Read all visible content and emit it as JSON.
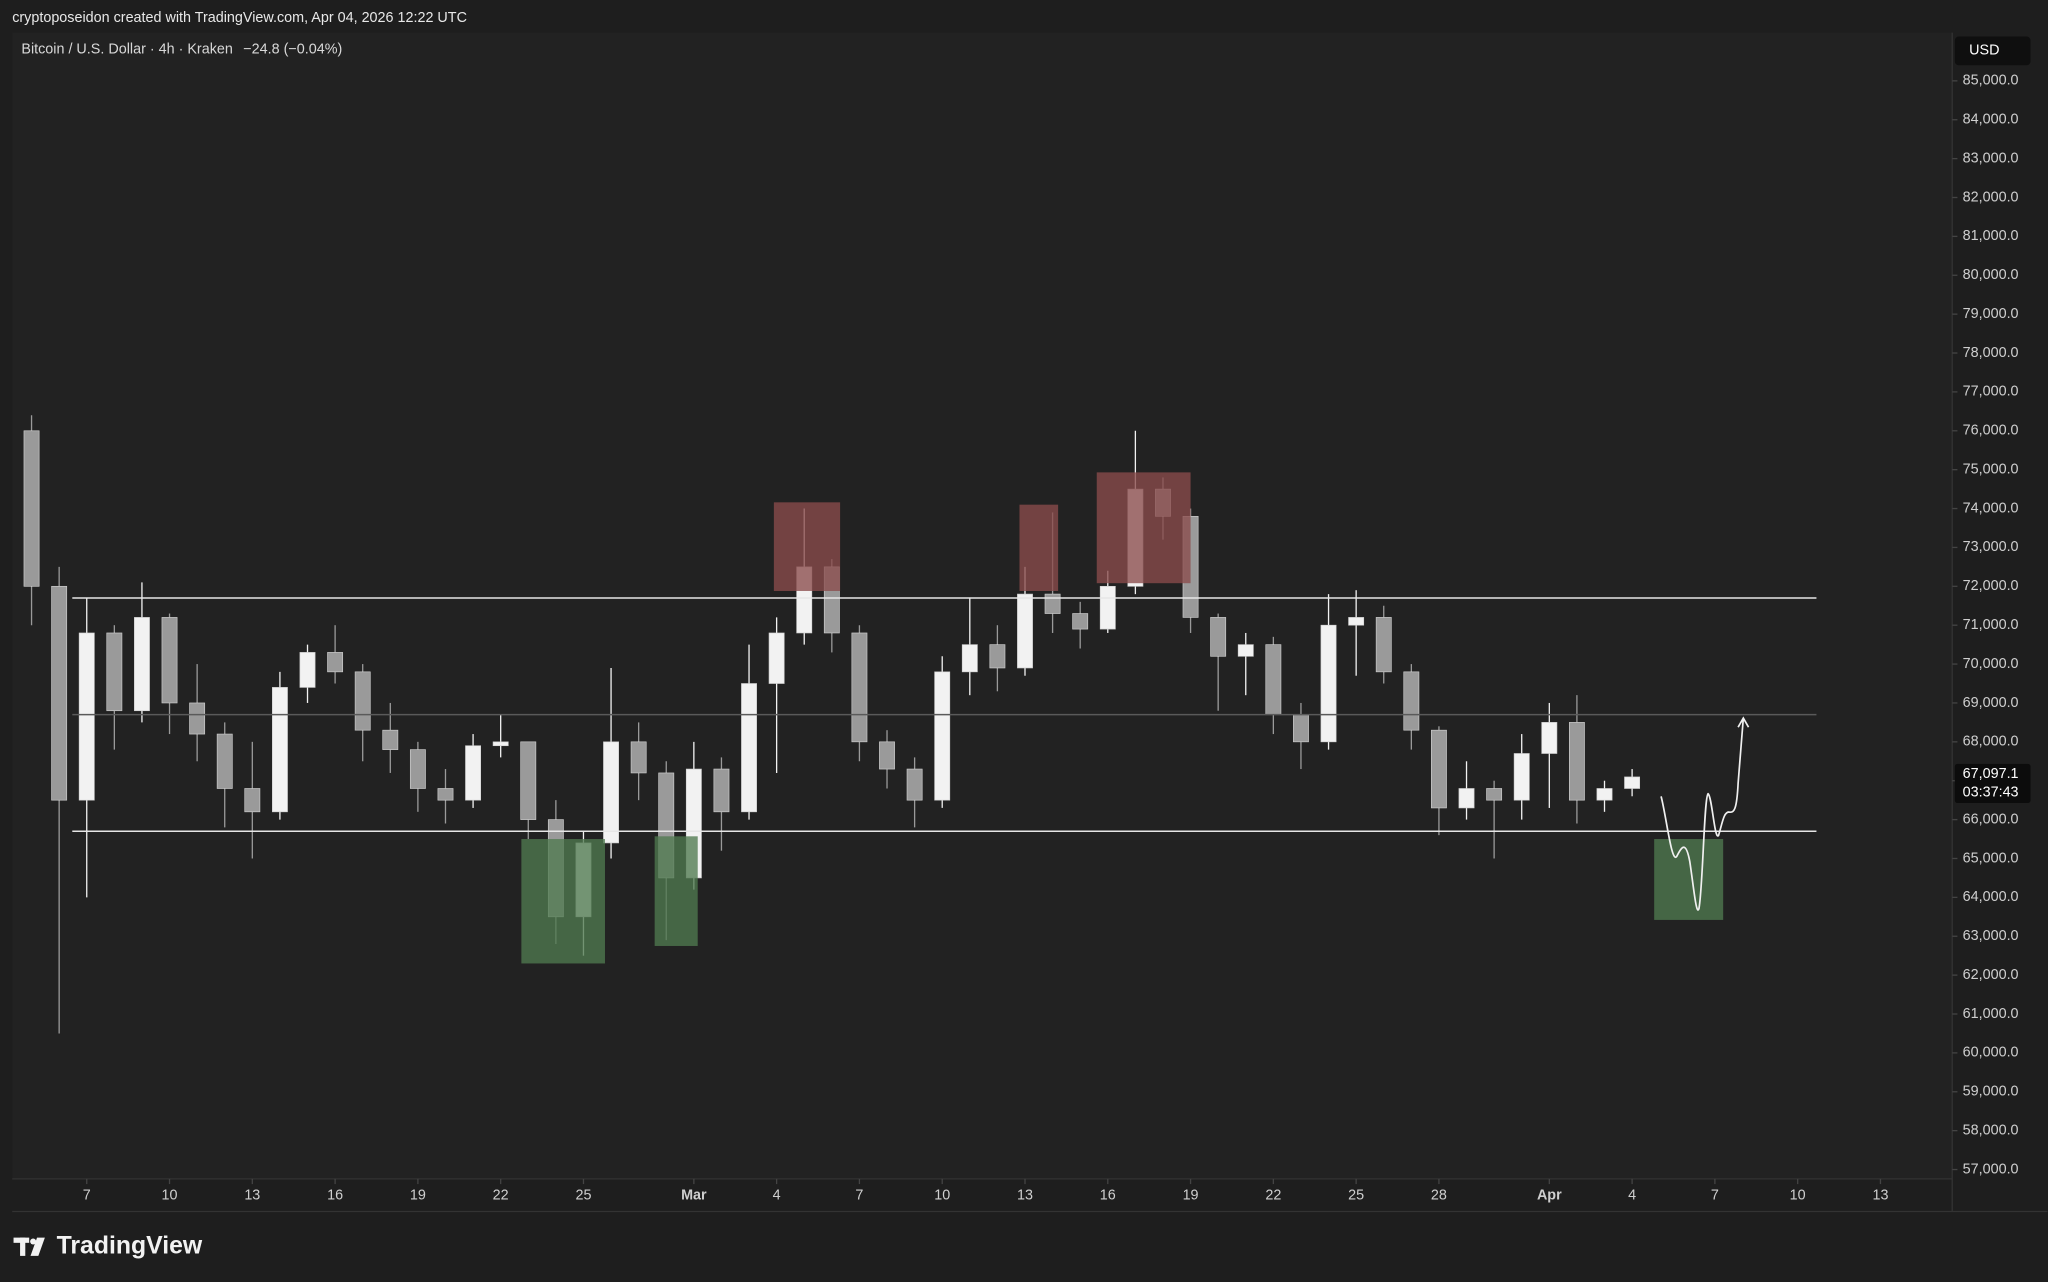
{
  "header": {
    "attribution": "cryptoposeidon created with TradingView.com, Apr 04, 2026 12:22 UTC"
  },
  "chart_data": {
    "type": "candlestick",
    "title": "Bitcoin / U.S. Dollar · 4h · Kraken",
    "subtitle": "−24.8 (−0.04%)",
    "currency": "USD",
    "x": [
      5,
      6,
      7,
      8,
      9,
      10,
      11,
      12,
      13,
      14,
      15,
      16,
      17,
      18,
      19,
      20,
      21,
      22,
      23,
      24,
      25,
      26,
      27,
      28,
      29,
      30,
      31,
      32,
      33,
      34,
      35,
      36,
      37,
      38,
      39,
      40,
      41,
      42,
      43,
      44,
      45,
      46,
      47,
      48,
      49,
      50,
      51,
      52,
      53,
      54,
      55,
      56,
      57,
      58,
      59,
      60,
      61,
      62,
      63
    ],
    "open": [
      76000,
      72000,
      66500,
      70800,
      68800,
      71200,
      69000,
      68200,
      66800,
      66200,
      69400,
      70300,
      69800,
      68300,
      67800,
      66800,
      66500,
      67900,
      68000,
      66000,
      63500,
      65400,
      68000,
      67200,
      64500,
      67300,
      66200,
      69500,
      70800,
      72500,
      70800,
      68000,
      67300,
      66500,
      69800,
      70500,
      69900,
      71800,
      71300,
      70900,
      72000,
      74500,
      73800,
      71200,
      70200,
      70500,
      68700,
      68000,
      71000,
      71200,
      69800,
      68300,
      66300,
      66800,
      66500,
      67700,
      68500,
      66500,
      66800
    ],
    "high": [
      76400,
      72500,
      71700,
      71000,
      72100,
      71300,
      70000,
      68500,
      68000,
      69800,
      70500,
      71000,
      70000,
      69000,
      68000,
      67300,
      68200,
      68700,
      68000,
      66500,
      65700,
      69900,
      68500,
      67500,
      68000,
      67600,
      70500,
      71200,
      74000,
      72700,
      71000,
      68300,
      67600,
      70200,
      71700,
      71000,
      72500,
      73900,
      71600,
      72400,
      76000,
      74800,
      74000,
      71300,
      70800,
      70700,
      69000,
      71800,
      71900,
      71500,
      70000,
      68400,
      67500,
      67000,
      68200,
      69000,
      69200,
      67000,
      67300
    ],
    "low": [
      71000,
      60500,
      64000,
      67800,
      68500,
      68200,
      67500,
      65800,
      65000,
      66000,
      69000,
      69500,
      67500,
      67200,
      66200,
      65900,
      66300,
      67600,
      65500,
      62800,
      62500,
      65000,
      66500,
      62900,
      64200,
      65200,
      66000,
      67200,
      70500,
      70300,
      67500,
      66800,
      65800,
      66300,
      69200,
      69300,
      69700,
      70800,
      70400,
      70800,
      71800,
      73200,
      70800,
      68800,
      69200,
      68200,
      67300,
      67800,
      69700,
      69500,
      67800,
      65600,
      66000,
      65000,
      66000,
      66300,
      65900,
      66200,
      66600
    ],
    "close": [
      72000,
      66500,
      70800,
      68800,
      71200,
      69000,
      68200,
      66800,
      66200,
      69400,
      70300,
      69800,
      68300,
      67800,
      66800,
      66500,
      67900,
      68000,
      66000,
      63500,
      65400,
      68000,
      67200,
      64500,
      67300,
      66200,
      69500,
      70800,
      72500,
      70800,
      68000,
      67300,
      66500,
      69800,
      70500,
      69900,
      71800,
      71300,
      70900,
      72000,
      74500,
      73800,
      71200,
      70200,
      70500,
      68700,
      68000,
      71000,
      71200,
      69800,
      68300,
      66300,
      66800,
      66500,
      67700,
      68500,
      66500,
      66800,
      67097.1
    ],
    "up_color": "#f2f2f2",
    "down_color": "#9a9a9a",
    "xlim": [
      4.3,
      74.6
    ],
    "xticks": [
      7,
      10,
      13,
      16,
      19,
      22,
      25,
      {
        "value": 29,
        "label": "Mar"
      },
      {
        "value": 32,
        "label": "4"
      },
      {
        "value": 35,
        "label": "7"
      },
      {
        "value": 38,
        "label": "10"
      },
      {
        "value": 41,
        "label": "13"
      },
      {
        "value": 44,
        "label": "16"
      },
      {
        "value": 47,
        "label": "19"
      },
      {
        "value": 50,
        "label": "22"
      },
      {
        "value": 53,
        "label": "25"
      },
      {
        "value": 56,
        "label": "28"
      },
      {
        "value": 60,
        "label": "Apr"
      },
      {
        "value": 63,
        "label": "4"
      },
      {
        "value": 66,
        "label": "7"
      },
      {
        "value": 69,
        "label": "10"
      },
      {
        "value": 72,
        "label": "13"
      }
    ],
    "ylim": [
      56760,
      86240
    ],
    "yticks": [
      {
        "value": 57000,
        "label": "57,000.0"
      },
      {
        "value": 58000,
        "label": "58,000.0"
      },
      {
        "value": 59000,
        "label": "59,000.0"
      },
      {
        "value": 60000,
        "label": "60,000.0"
      },
      {
        "value": 61000,
        "label": "61,000.0"
      },
      {
        "value": 62000,
        "label": "62,000.0"
      },
      {
        "value": 63000,
        "label": "63,000.0"
      },
      {
        "value": 64000,
        "label": "64,000.0"
      },
      {
        "value": 65000,
        "label": "65,000.0"
      },
      {
        "value": 66000,
        "label": "66,000.0"
      },
      {
        "value": 67000,
        "label": "67,000.0"
      },
      {
        "value": 68000,
        "label": "68,000.0"
      },
      {
        "value": 69000,
        "label": "69,000.0"
      },
      {
        "value": 70000,
        "label": "70,000.0"
      },
      {
        "value": 71000,
        "label": "71,000.0"
      },
      {
        "value": 72000,
        "label": "72,000.0"
      },
      {
        "value": 73000,
        "label": "73,000.0"
      },
      {
        "value": 74000,
        "label": "74,000.0"
      },
      {
        "value": 75000,
        "label": "75,000.0"
      },
      {
        "value": 76000,
        "label": "76,000.0"
      },
      {
        "value": 77000,
        "label": "77,000.0"
      },
      {
        "value": 78000,
        "label": "78,000.0"
      },
      {
        "value": 79000,
        "label": "79,000.0"
      },
      {
        "value": 80000,
        "label": "80,000.0"
      },
      {
        "value": 81000,
        "label": "81,000.0"
      },
      {
        "value": 82000,
        "label": "82,000.0"
      },
      {
        "value": 83000,
        "label": "83,000.0"
      },
      {
        "value": 84000,
        "label": "84,000.0"
      },
      {
        "value": 85000,
        "label": "85,000.0"
      }
    ],
    "grid": false,
    "last_price": {
      "value": 67097.1,
      "label": "67,097.1"
    },
    "countdown": "03:37:43",
    "levels": [
      {
        "value": 71700,
        "color": "#e6e6e6"
      },
      {
        "value": 68700,
        "color": "#5a5a5a"
      },
      {
        "value": 65700,
        "color": "#e6e6e6"
      }
    ],
    "zones": [
      {
        "color": "#4f7a4f",
        "x": [
          22.75,
          25.78
        ],
        "y": [
          62300,
          65500
        ]
      },
      {
        "color": "#4f7a4f",
        "x": [
          27.58,
          29.14
        ],
        "y": [
          62750,
          65570
        ]
      },
      {
        "color": "#8a4b4b",
        "x": [
          31.9,
          34.3
        ],
        "y": [
          71880,
          74160
        ]
      },
      {
        "color": "#8a4b4b",
        "x": [
          40.8,
          42.2
        ],
        "y": [
          71880,
          74100
        ]
      },
      {
        "color": "#8a4b4b",
        "x": [
          43.6,
          47.0
        ],
        "y": [
          72080,
          74930
        ]
      },
      {
        "color": "#4f7a4f",
        "x": [
          63.8,
          66.3
        ],
        "y": [
          63420,
          65500
        ]
      }
    ]
  },
  "footer": {
    "logo": "TradingView"
  }
}
